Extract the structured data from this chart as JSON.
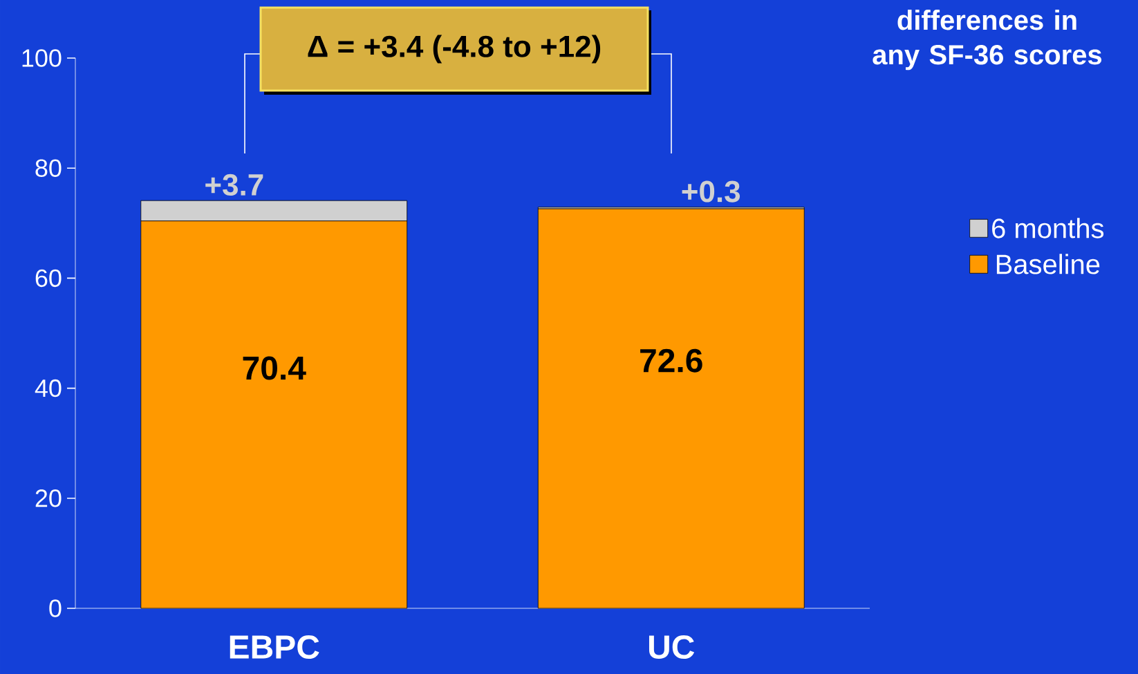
{
  "chart_data": {
    "type": "bar",
    "stacked": true,
    "categories": [
      "EBPC",
      "UC"
    ],
    "series": [
      {
        "name": "Baseline",
        "color": "#ff9900",
        "values": [
          70.4,
          72.6
        ],
        "value_labels": [
          "70.4",
          "72.6"
        ]
      },
      {
        "name": "6 months",
        "color": "#d0d0d0",
        "values": [
          3.7,
          0.3
        ],
        "value_labels": [
          "+3.7",
          "+0.3"
        ]
      }
    ],
    "ylim": [
      0,
      100
    ],
    "yticks": [
      0,
      20,
      40,
      60,
      80,
      100
    ],
    "legend": "right",
    "annotations": [
      "Δ = +3.4 (-4.8 to +12)",
      "differences in any SF-36 scores"
    ]
  }
}
